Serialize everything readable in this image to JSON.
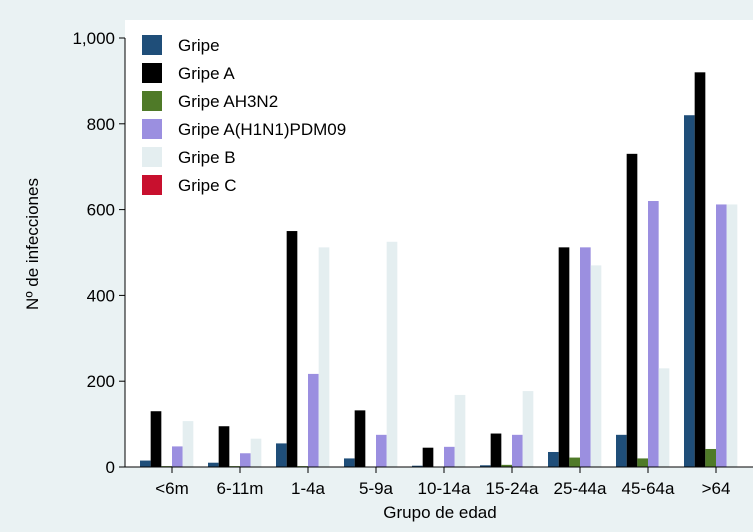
{
  "chart_data": {
    "type": "bar",
    "title": "",
    "xlabel": "Grupo de edad",
    "ylabel": "Nº de infecciones",
    "ylim": [
      0,
      1000
    ],
    "yticks": [
      0,
      200,
      400,
      600,
      800,
      1000
    ],
    "ytick_labels": [
      "0",
      "200",
      "400",
      "600",
      "800",
      "1,000"
    ],
    "categories": [
      "<6m",
      "6-11m",
      "1-4a",
      "5-9a",
      "10-14a",
      "15-24a",
      "25-44a",
      "45-64a",
      ">64"
    ],
    "legend_position": "top-left",
    "grid": false,
    "series": [
      {
        "name": "Gripe",
        "color": "#1f4e79",
        "values": [
          15,
          10,
          55,
          20,
          3,
          4,
          35,
          75,
          820
        ]
      },
      {
        "name": "Gripe A",
        "color": "#000000",
        "values": [
          130,
          95,
          550,
          132,
          45,
          78,
          512,
          730,
          920
        ]
      },
      {
        "name": "Gripe AH3N2",
        "color": "#4f7a28",
        "values": [
          2,
          2,
          2,
          1,
          1,
          5,
          22,
          20,
          42
        ]
      },
      {
        "name": "Gripe A(H1N1)PDM09",
        "color": "#9b8fe0",
        "values": [
          48,
          32,
          217,
          75,
          47,
          75,
          512,
          620,
          612
        ]
      },
      {
        "name": "Gripe B",
        "color": "#e4eef0",
        "values": [
          107,
          66,
          512,
          525,
          168,
          177,
          470,
          230,
          612
        ]
      },
      {
        "name": "Gripe C",
        "color": "#c8102e",
        "values": [
          0,
          0,
          0,
          0,
          0,
          0,
          0,
          0,
          0
        ]
      }
    ]
  }
}
